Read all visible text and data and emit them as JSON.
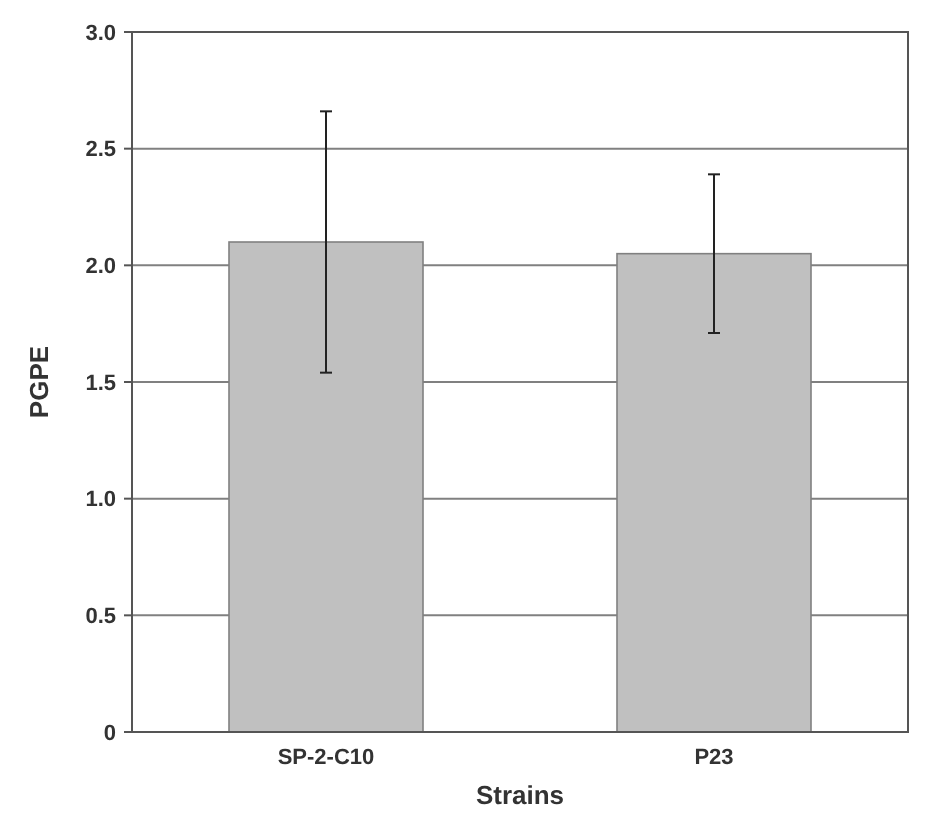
{
  "chart_data": {
    "type": "bar",
    "xlabel": "Strains",
    "ylabel": "PGPE",
    "categories": [
      "SP-2-C10",
      "P23"
    ],
    "values": [
      2.1,
      2.05
    ],
    "errors": [
      0.56,
      0.34
    ],
    "color": "#c0c0c0",
    "ylim": [
      0,
      3
    ],
    "yticks": [
      {
        "value": 0,
        "label": "0"
      },
      {
        "value": 0.5,
        "label": "0.5"
      },
      {
        "value": 1,
        "label": "1.0"
      },
      {
        "value": 1.5,
        "label": "1.5"
      },
      {
        "value": 2,
        "label": "2.0"
      },
      {
        "value": 2.5,
        "label": "2.5"
      },
      {
        "value": 3,
        "label": "3.0"
      }
    ],
    "grid": "y"
  }
}
